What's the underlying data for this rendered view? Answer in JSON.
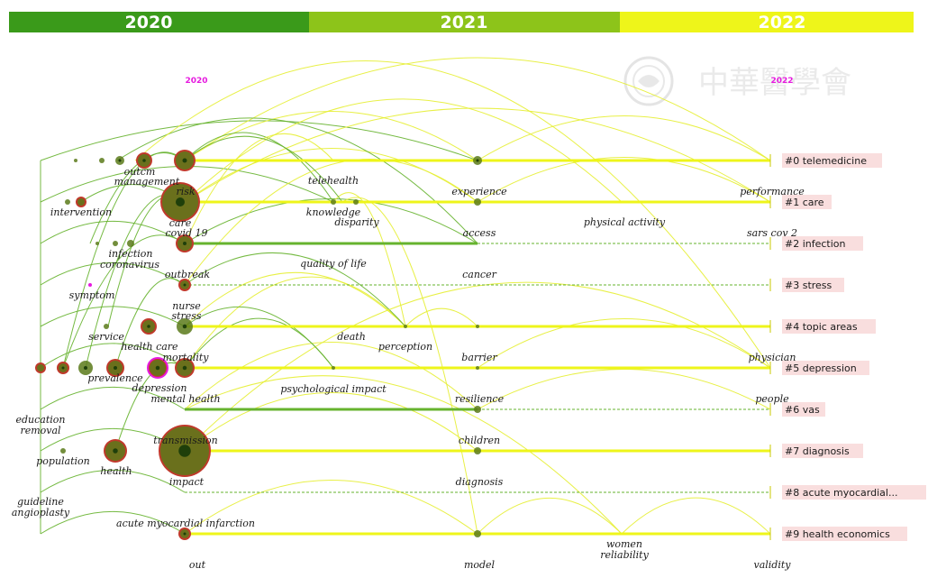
{
  "header": {
    "years": [
      "2020",
      "2021",
      "2022"
    ]
  },
  "range": {
    "start": "2020",
    "end": "2022"
  },
  "watermark": {
    "text": "中華醫學會"
  },
  "colors": {
    "year_2020": "#3a9a1a",
    "year_2021": "#8dc41a",
    "year_2022": "#eef51a",
    "link_green": "#66b32e",
    "link_yellow": "#e6ee33",
    "node_ring": "#c0392b",
    "node_fill": "#5a7a1a",
    "cluster_label_bg": "#f9dede",
    "range_label": "#e61adf"
  },
  "clusters": [
    {
      "id": 0,
      "label": "#0 telemedicine"
    },
    {
      "id": 1,
      "label": "#1 care"
    },
    {
      "id": 2,
      "label": "#2 infection"
    },
    {
      "id": 3,
      "label": "#3 stress"
    },
    {
      "id": 4,
      "label": "#4 topic areas"
    },
    {
      "id": 5,
      "label": "#5 depression"
    },
    {
      "id": 6,
      "label": "#6 vas"
    },
    {
      "id": 7,
      "label": "#7 diagnosis"
    },
    {
      "id": 8,
      "label": "#8 acute myocardial..."
    },
    {
      "id": 9,
      "label": "#9 health economics"
    }
  ],
  "keywords": [
    "outcm",
    "management",
    "risk",
    "care",
    "covid 19",
    "intervention",
    "infection",
    "coronavirus",
    "outbreak",
    "symptom",
    "nurse",
    "stress",
    "service",
    "health care",
    "mortality",
    "prevalence",
    "depression",
    "mental health",
    "education",
    "removal",
    "transmission",
    "population",
    "health",
    "impact",
    "guideline",
    "angioplasty",
    "acute myocardial infarction",
    "out",
    "telehealth",
    "knowledge",
    "disparity",
    "quality of life",
    "death",
    "perception",
    "psychological impact",
    "experience",
    "access",
    "cancer",
    "barrier",
    "resilience",
    "children",
    "diagnosis",
    "model",
    "physical activity",
    "women",
    "reliability",
    "performance",
    "sars cov 2",
    "physician",
    "people",
    "validity"
  ]
}
